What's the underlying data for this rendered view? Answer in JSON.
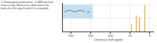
{
  "chart_data": {
    "type": "bar",
    "title": "1-Chloropropane produced the ¹³C NMR spectrum\nshown at right. Match each carbon atom in the\nmolecule to the signal to which it corresponds.",
    "xlabel": "Chemical shift (ppm)",
    "x": [
      46,
      35,
      26,
      13
    ],
    "values": [
      0.28,
      0.62,
      0.52,
      1.0
    ],
    "color": "#E8A822",
    "xlim": [
      220,
      -10
    ],
    "xticks": [
      200,
      150,
      100,
      50,
      0
    ],
    "ylim": [
      0,
      1.08
    ],
    "yticks": [
      0,
      0.5,
      1
    ],
    "grid": true,
    "tick_labels": "x",
    "annotations": [
      "Cl"
    ]
  }
}
